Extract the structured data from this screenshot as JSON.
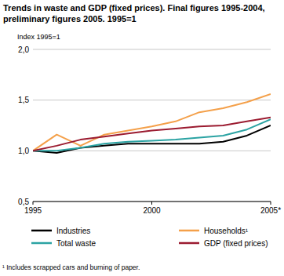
{
  "chart_data": {
    "type": "line",
    "title": "Trends in waste and GDP (fixed prices). Final figures 1995-2004, preliminary figures 2005. 1995=1",
    "y_label": "Index 1995=1",
    "footnote": "¹ Includes scrapped cars and burning of paper.",
    "x": [
      1995,
      1996,
      1997,
      1998,
      1999,
      2000,
      2001,
      2002,
      2003,
      2004,
      2005
    ],
    "xlim": [
      1995,
      2005
    ],
    "xticks": [
      1995,
      2000,
      {
        "value": 2005,
        "label": "2005*"
      }
    ],
    "ylim": [
      0.5,
      2.0
    ],
    "yticks": [
      {
        "value": 0.5,
        "label": "0,5"
      },
      {
        "value": 1.0,
        "label": "1,0"
      },
      {
        "value": 1.5,
        "label": "1,5"
      },
      {
        "value": 2.0,
        "label": "2,0"
      }
    ],
    "grid": true,
    "legend": "bottom",
    "series": [
      {
        "name": "Industries",
        "color": "#000000",
        "values": [
          1.0,
          0.98,
          1.03,
          1.05,
          1.07,
          1.07,
          1.07,
          1.07,
          1.09,
          1.15,
          1.25
        ]
      },
      {
        "name": "Households¹",
        "color": "#f4a04a",
        "values": [
          1.0,
          1.16,
          1.05,
          1.16,
          1.2,
          1.24,
          1.29,
          1.38,
          1.42,
          1.48,
          1.56
        ]
      },
      {
        "name": "Total waste",
        "color": "#2ba3a3",
        "values": [
          1.0,
          1.0,
          1.03,
          1.07,
          1.09,
          1.1,
          1.11,
          1.13,
          1.15,
          1.21,
          1.31
        ]
      },
      {
        "name": "GDP (fixed prices)",
        "color": "#9b1b30",
        "values": [
          1.0,
          1.05,
          1.11,
          1.14,
          1.17,
          1.2,
          1.22,
          1.24,
          1.25,
          1.29,
          1.33
        ]
      }
    ]
  }
}
